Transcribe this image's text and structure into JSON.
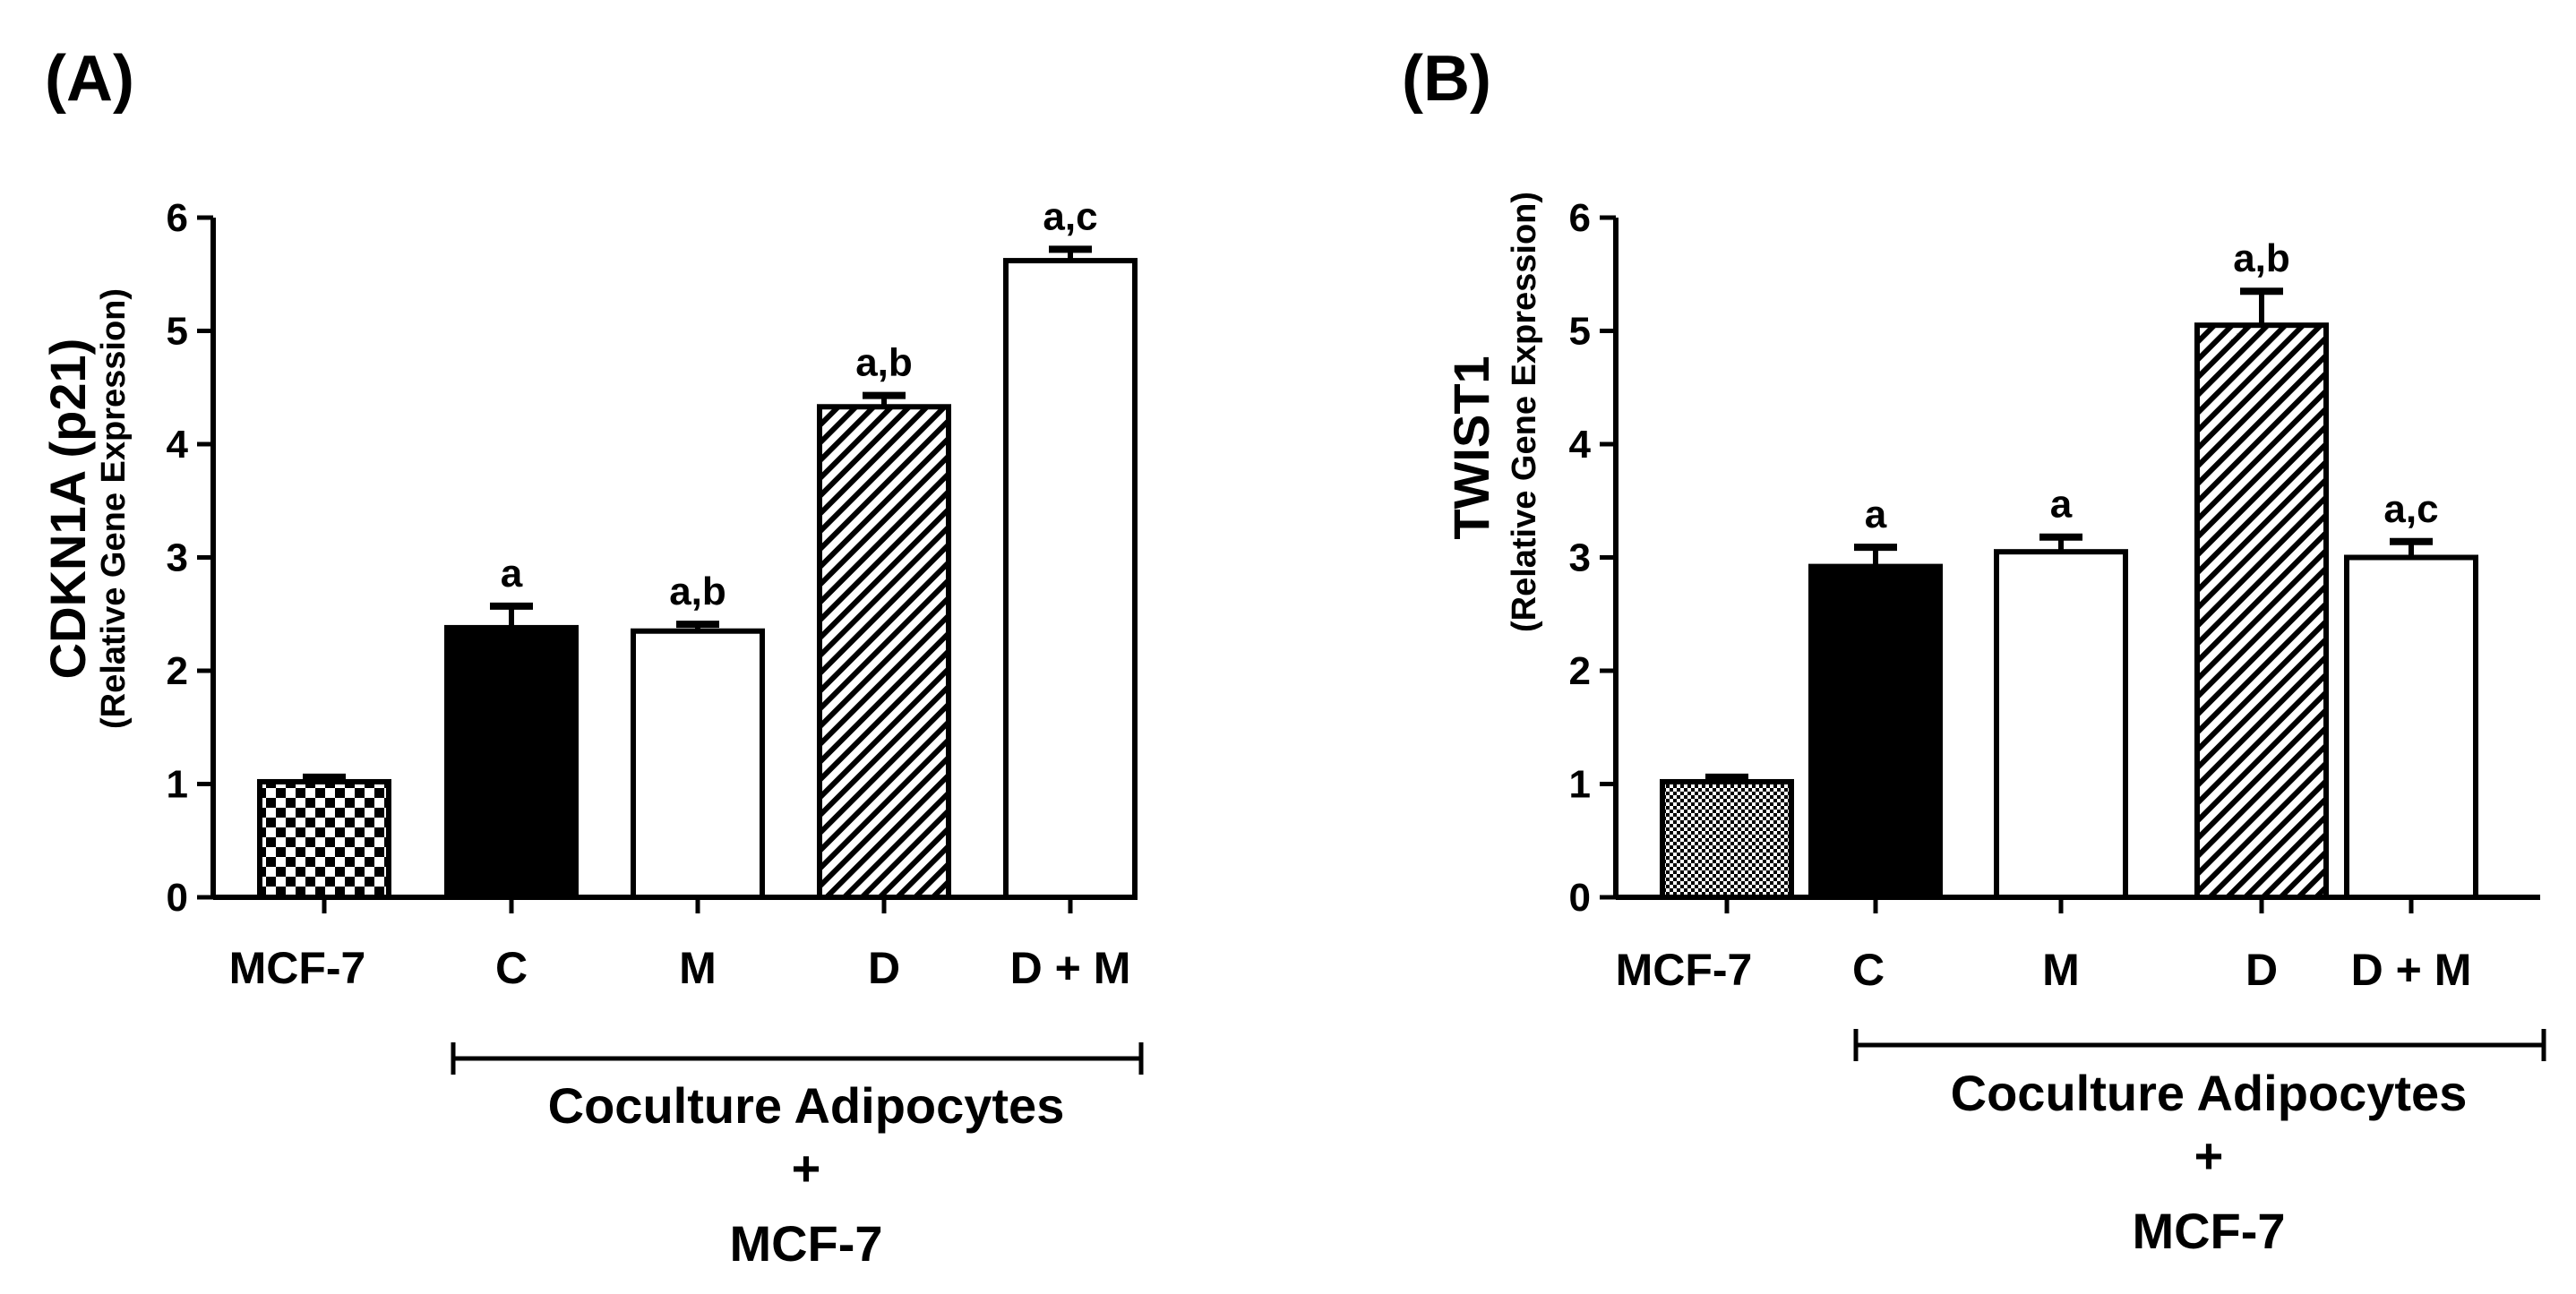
{
  "chart_data": [
    {
      "type": "bar",
      "panel_label": "(A)",
      "ylabel": "CDKN1A (p21)",
      "ylabel_sub": "(Relative Gene Expression)",
      "ylim": [
        0,
        6
      ],
      "yticks": [
        "0",
        "1",
        "2",
        "3",
        "4",
        "5",
        "6"
      ],
      "categories": [
        "MCF-7",
        "C",
        "M",
        "D",
        "D + M"
      ],
      "values": [
        1.02,
        2.38,
        2.35,
        4.33,
        5.62
      ],
      "errors": [
        0.04,
        0.19,
        0.06,
        0.1,
        0.1
      ],
      "significance": [
        "",
        "a",
        "a,b",
        "a,b",
        "a,c"
      ],
      "fills": [
        "checker",
        "solid",
        "open",
        "hatch",
        "open"
      ],
      "group_label": [
        "Coculture Adipocytes",
        "+",
        "MCF-7"
      ]
    },
    {
      "type": "bar",
      "panel_label": "(B)",
      "ylabel": "TWIST1",
      "ylabel_sub": "(Relative Gene Expression)",
      "ylim": [
        0,
        6
      ],
      "yticks": [
        "0",
        "1",
        "2",
        "3",
        "4",
        "5",
        "6"
      ],
      "categories": [
        "MCF-7",
        "C",
        "M",
        "D",
        "D + M"
      ],
      "values": [
        1.02,
        2.92,
        3.05,
        5.05,
        3.0
      ],
      "errors": [
        0.04,
        0.17,
        0.13,
        0.3,
        0.14
      ],
      "significance": [
        "",
        "a",
        "a",
        "a,b",
        "a,c"
      ],
      "fills": [
        "grid",
        "solid",
        "open",
        "hatch",
        "open"
      ],
      "group_label": [
        "Coculture Adipocytes",
        "+",
        "MCF-7"
      ]
    }
  ],
  "colors": {
    "ink": "#000000",
    "paper": "#ffffff"
  }
}
